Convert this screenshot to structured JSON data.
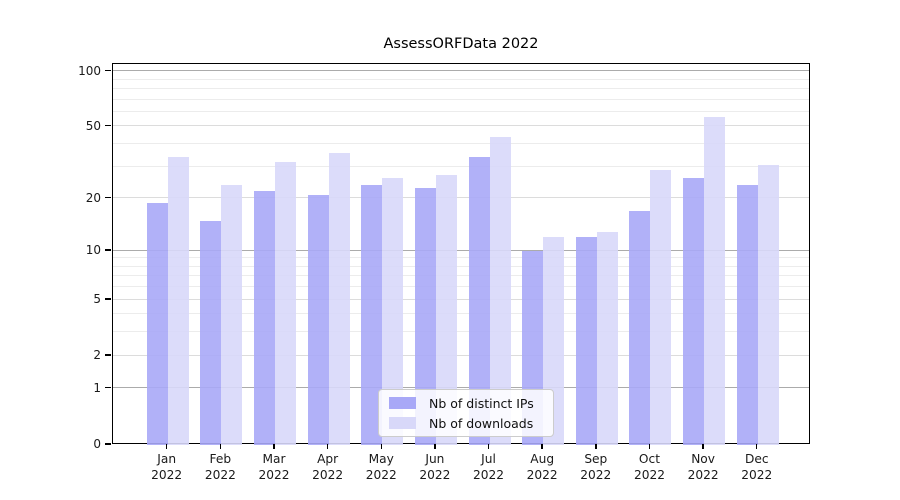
{
  "chart_data": {
    "type": "bar",
    "title": "AssessORFData 2022",
    "categories": [
      "Jan",
      "Feb",
      "Mar",
      "Apr",
      "May",
      "Jun",
      "Jul",
      "Aug",
      "Sep",
      "Oct",
      "Nov",
      "Dec"
    ],
    "category_year": "2022",
    "series": [
      {
        "name": "Nb of distinct IPs",
        "color": "#a8a8f7",
        "values": [
          19,
          15,
          22,
          21,
          24,
          23,
          34,
          10,
          12,
          17,
          26,
          24
        ]
      },
      {
        "name": "Nb of downloads",
        "color": "#d8d8f9",
        "values": [
          34,
          24,
          32,
          36,
          26,
          27,
          44,
          12,
          13,
          29,
          57,
          31
        ]
      }
    ],
    "xlabel": "",
    "ylabel": "",
    "yscale": "log1p",
    "ylim": [
      0,
      110
    ],
    "yticks_major": [
      0,
      1,
      2,
      5,
      10,
      20,
      50,
      100
    ],
    "yticks_minor": [
      3,
      4,
      6,
      7,
      8,
      9,
      30,
      40,
      60,
      70,
      80,
      90
    ],
    "grid": "on",
    "legend_position": "lower center",
    "colors": {
      "grid_decade": "#ababab",
      "grid_major": "#dcdcdc",
      "grid_minor": "#ececec",
      "spine": "#000000",
      "text": "#1a1a1a"
    }
  }
}
